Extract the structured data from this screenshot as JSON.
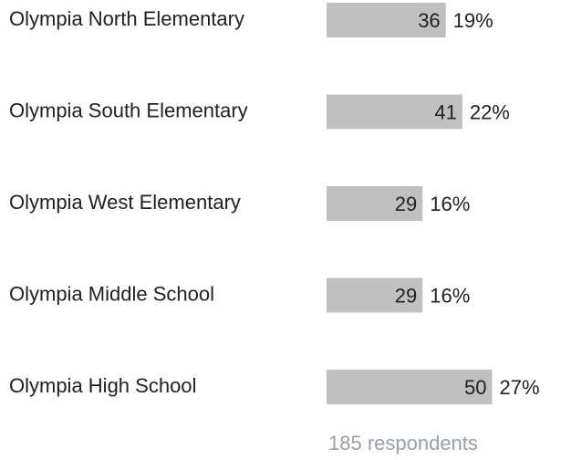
{
  "chart_data": {
    "type": "bar",
    "orientation": "horizontal",
    "categories": [
      "Olympia North Elementary",
      "Olympia South Elementary",
      "Olympia West Elementary",
      "Olympia Middle School",
      "Olympia High School"
    ],
    "values": [
      36,
      41,
      29,
      29,
      50
    ],
    "percent_labels": [
      "19%",
      "22%",
      "16%",
      "16%",
      "27%"
    ],
    "color": "#c0c0c0",
    "note": "185 respondents"
  }
}
